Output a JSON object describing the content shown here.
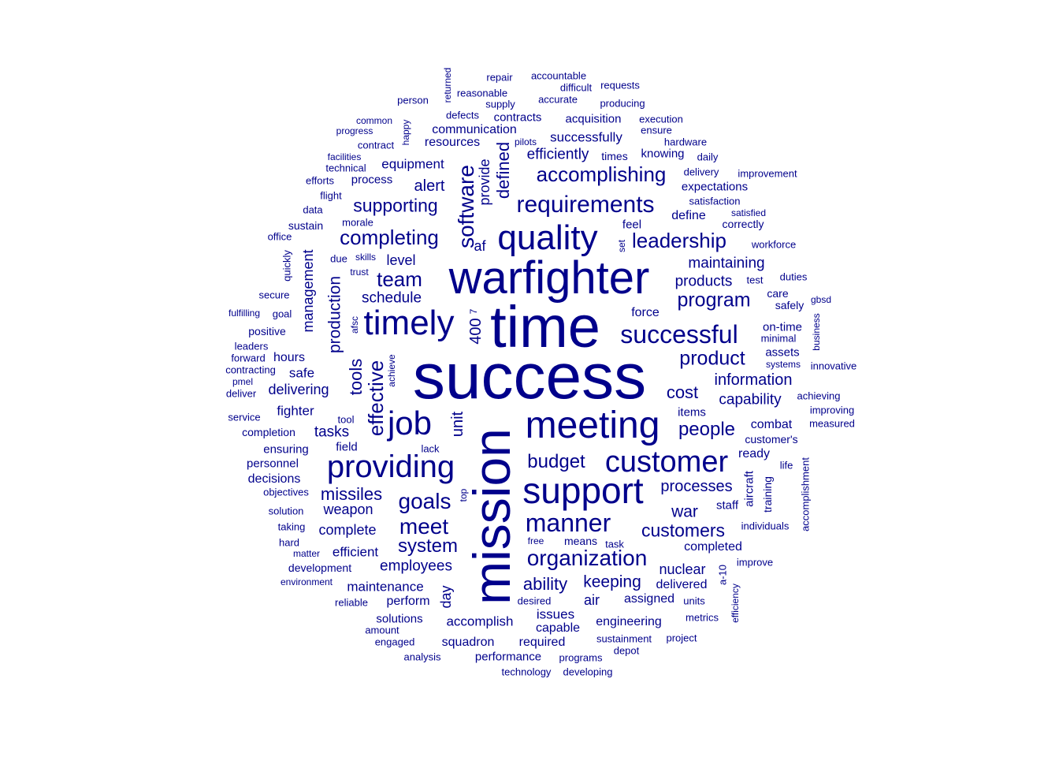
{
  "color": "#00008b",
  "words": [
    {
      "text": "success",
      "size": 82
    },
    {
      "text": "mission",
      "size": 66,
      "vertical": true
    },
    {
      "text": "time",
      "size": 74
    },
    {
      "text": "warfighter",
      "size": 58
    },
    {
      "text": "support",
      "size": 46
    },
    {
      "text": "meeting",
      "size": 48
    },
    {
      "text": "quality",
      "size": 44
    },
    {
      "text": "timely",
      "size": 44
    },
    {
      "text": "job",
      "size": 42
    },
    {
      "text": "providing",
      "size": 40
    },
    {
      "text": "customer",
      "size": 38
    },
    {
      "text": "manner",
      "size": 32
    },
    {
      "text": "requirements",
      "size": 30
    },
    {
      "text": "successful",
      "size": 32
    },
    {
      "text": "software",
      "size": 28,
      "vertical": true
    },
    {
      "text": "organization",
      "size": 28
    },
    {
      "text": "effective",
      "size": 26,
      "vertical": true
    },
    {
      "text": "goals",
      "size": 28
    },
    {
      "text": "meet",
      "size": 28
    },
    {
      "text": "completing",
      "size": 26
    },
    {
      "text": "accomplishing",
      "size": 26
    },
    {
      "text": "leadership",
      "size": 26
    },
    {
      "text": "team",
      "size": 26
    },
    {
      "text": "program",
      "size": 25
    },
    {
      "text": "product",
      "size": 25
    },
    {
      "text": "budget",
      "size": 24
    },
    {
      "text": "customers",
      "size": 23
    },
    {
      "text": "people",
      "size": 24
    },
    {
      "text": "system",
      "size": 24
    },
    {
      "text": "supporting",
      "size": 23
    },
    {
      "text": "missiles",
      "size": 22
    },
    {
      "text": "ability",
      "size": 22
    },
    {
      "text": "cost",
      "size": 22
    },
    {
      "text": "keeping",
      "size": 21
    },
    {
      "text": "processes",
      "size": 20
    },
    {
      "text": "war",
      "size": 21
    },
    {
      "text": "tools",
      "size": 22,
      "vertical": true
    },
    {
      "text": "defined",
      "size": 22,
      "vertical": true
    },
    {
      "text": "production",
      "size": 21,
      "vertical": true
    },
    {
      "text": "management",
      "size": 18,
      "vertical": true
    },
    {
      "text": "unit",
      "size": 20,
      "vertical": true
    },
    {
      "text": "provide",
      "size": 18,
      "vertical": true
    },
    {
      "text": "400",
      "size": 20,
      "vertical": true
    },
    {
      "text": "af",
      "size": 18
    },
    {
      "text": "level",
      "size": 18
    },
    {
      "text": "alert",
      "size": 20
    },
    {
      "text": "schedule",
      "size": 19
    },
    {
      "text": "information",
      "size": 20
    },
    {
      "text": "capability",
      "size": 19
    },
    {
      "text": "products",
      "size": 19
    },
    {
      "text": "maintaining",
      "size": 19
    },
    {
      "text": "efficiently",
      "size": 19
    },
    {
      "text": "successfully",
      "size": 17
    },
    {
      "text": "equipment",
      "size": 17
    },
    {
      "text": "weapon",
      "size": 18
    },
    {
      "text": "tasks",
      "size": 19
    },
    {
      "text": "employees",
      "size": 19
    },
    {
      "text": "complete",
      "size": 18
    },
    {
      "text": "efficient",
      "size": 17
    },
    {
      "text": "maintenance",
      "size": 17
    },
    {
      "text": "delivering",
      "size": 18
    },
    {
      "text": "fighter",
      "size": 17
    },
    {
      "text": "safe",
      "size": 17
    },
    {
      "text": "hours",
      "size": 16
    },
    {
      "text": "nuclear",
      "size": 18
    },
    {
      "text": "delivered",
      "size": 16
    },
    {
      "text": "completed",
      "size": 16
    },
    {
      "text": "combat",
      "size": 16
    },
    {
      "text": "ready",
      "size": 16
    },
    {
      "text": "aircraft",
      "size": 15,
      "vertical": true
    },
    {
      "text": "training",
      "size": 14,
      "vertical": true
    },
    {
      "text": "staff",
      "size": 15
    },
    {
      "text": "items",
      "size": 15
    },
    {
      "text": "force",
      "size": 16
    },
    {
      "text": "define",
      "size": 16
    },
    {
      "text": "feel",
      "size": 15
    },
    {
      "text": "expectations",
      "size": 15
    },
    {
      "text": "knowing",
      "size": 15
    },
    {
      "text": "times",
      "size": 14
    },
    {
      "text": "acquisition",
      "size": 15
    },
    {
      "text": "contracts",
      "size": 15
    },
    {
      "text": "communication",
      "size": 16
    },
    {
      "text": "resources",
      "size": 16
    },
    {
      "text": "process",
      "size": 15
    },
    {
      "text": "sustain",
      "size": 14
    },
    {
      "text": "positive",
      "size": 14
    },
    {
      "text": "ensuring",
      "size": 15
    },
    {
      "text": "personnel",
      "size": 15
    },
    {
      "text": "decisions",
      "size": 16
    },
    {
      "text": "completion",
      "size": 14
    },
    {
      "text": "field",
      "size": 15
    },
    {
      "text": "accomplish",
      "size": 17
    },
    {
      "text": "issues",
      "size": 17
    },
    {
      "text": "capable",
      "size": 16
    },
    {
      "text": "engineering",
      "size": 16
    },
    {
      "text": "air",
      "size": 18
    },
    {
      "text": "assigned",
      "size": 16
    },
    {
      "text": "perform",
      "size": 16
    },
    {
      "text": "solutions",
      "size": 15
    },
    {
      "text": "squadron",
      "size": 16
    },
    {
      "text": "required",
      "size": 16
    },
    {
      "text": "performance",
      "size": 15
    },
    {
      "text": "means",
      "size": 14
    },
    {
      "text": "day",
      "size": 18,
      "vertical": true
    },
    {
      "text": "on-time",
      "size": 15
    },
    {
      "text": "assets",
      "size": 15
    },
    {
      "text": "care",
      "size": 14
    },
    {
      "text": "safely",
      "size": 14
    },
    {
      "text": "correctly",
      "size": 14
    },
    {
      "text": "customer's",
      "size": 14
    },
    {
      "text": "tool",
      "size": 13
    },
    {
      "text": "skills",
      "size": 12
    },
    {
      "text": "due",
      "size": 13
    },
    {
      "text": "trust",
      "size": 12
    },
    {
      "text": "afsc",
      "size": 12,
      "vertical": true
    },
    {
      "text": "7",
      "size": 12,
      "vertical": true
    },
    {
      "text": "achieve",
      "size": 12,
      "vertical": true
    },
    {
      "text": "set",
      "size": 12,
      "vertical": true
    },
    {
      "text": "returned",
      "size": 12,
      "vertical": true
    },
    {
      "text": "happy",
      "size": 12,
      "vertical": true
    },
    {
      "text": "top",
      "size": 12,
      "vertical": true
    },
    {
      "text": "a-10",
      "size": 13,
      "vertical": true
    },
    {
      "text": "efficiency",
      "size": 12,
      "vertical": true
    },
    {
      "text": "accomplishment",
      "size": 13,
      "vertical": true
    },
    {
      "text": "business",
      "size": 12,
      "vertical": true
    },
    {
      "text": "quickly",
      "size": 13,
      "vertical": true
    },
    {
      "text": "lack",
      "size": 13
    },
    {
      "text": "pilots",
      "size": 12
    },
    {
      "text": "task",
      "size": 13
    },
    {
      "text": "free",
      "size": 12
    },
    {
      "text": "desired",
      "size": 13
    },
    {
      "text": "units",
      "size": 13
    },
    {
      "text": "repair",
      "size": 13
    },
    {
      "text": "accountable",
      "size": 13
    },
    {
      "text": "difficult",
      "size": 13
    },
    {
      "text": "requests",
      "size": 13
    },
    {
      "text": "reasonable",
      "size": 13
    },
    {
      "text": "person",
      "size": 13
    },
    {
      "text": "supply",
      "size": 13
    },
    {
      "text": "accurate",
      "size": 13
    },
    {
      "text": "producing",
      "size": 13
    },
    {
      "text": "defects",
      "size": 13
    },
    {
      "text": "common",
      "size": 12
    },
    {
      "text": "execution",
      "size": 13
    },
    {
      "text": "progress",
      "size": 12
    },
    {
      "text": "ensure",
      "size": 13
    },
    {
      "text": "contract",
      "size": 13
    },
    {
      "text": "hardware",
      "size": 13
    },
    {
      "text": "facilities",
      "size": 12
    },
    {
      "text": "technical",
      "size": 13
    },
    {
      "text": "daily",
      "size": 13
    },
    {
      "text": "efforts",
      "size": 13
    },
    {
      "text": "delivery",
      "size": 13
    },
    {
      "text": "improvement",
      "size": 13
    },
    {
      "text": "flight",
      "size": 13
    },
    {
      "text": "satisfaction",
      "size": 13
    },
    {
      "text": "data",
      "size": 13
    },
    {
      "text": "satisfied",
      "size": 12
    },
    {
      "text": "morale",
      "size": 13
    },
    {
      "text": "office",
      "size": 13
    },
    {
      "text": "workforce",
      "size": 13
    },
    {
      "text": "test",
      "size": 13
    },
    {
      "text": "duties",
      "size": 13
    },
    {
      "text": "secure",
      "size": 13
    },
    {
      "text": "gbsd",
      "size": 12
    },
    {
      "text": "fulfilling",
      "size": 12
    },
    {
      "text": "goal",
      "size": 13
    },
    {
      "text": "minimal",
      "size": 13
    },
    {
      "text": "leaders",
      "size": 13
    },
    {
      "text": "forward",
      "size": 13
    },
    {
      "text": "systems",
      "size": 12
    },
    {
      "text": "innovative",
      "size": 13
    },
    {
      "text": "contracting",
      "size": 13
    },
    {
      "text": "pmel",
      "size": 12
    },
    {
      "text": "deliver",
      "size": 13
    },
    {
      "text": "achieving",
      "size": 13
    },
    {
      "text": "service",
      "size": 13
    },
    {
      "text": "improving",
      "size": 13
    },
    {
      "text": "measured",
      "size": 13
    },
    {
      "text": "life",
      "size": 13
    },
    {
      "text": "objectives",
      "size": 13
    },
    {
      "text": "solution",
      "size": 13
    },
    {
      "text": "individuals",
      "size": 13
    },
    {
      "text": "taking",
      "size": 13
    },
    {
      "text": "hard",
      "size": 13
    },
    {
      "text": "matter",
      "size": 12
    },
    {
      "text": "improve",
      "size": 13
    },
    {
      "text": "development",
      "size": 14
    },
    {
      "text": "environment",
      "size": 12
    },
    {
      "text": "reliable",
      "size": 13
    },
    {
      "text": "metrics",
      "size": 13
    },
    {
      "text": "amount",
      "size": 13
    },
    {
      "text": "engaged",
      "size": 13
    },
    {
      "text": "sustainment",
      "size": 13
    },
    {
      "text": "project",
      "size": 13
    },
    {
      "text": "depot",
      "size": 13
    },
    {
      "text": "analysis",
      "size": 13
    },
    {
      "text": "programs",
      "size": 13
    },
    {
      "text": "technology",
      "size": 13
    },
    {
      "text": "developing",
      "size": 13
    }
  ]
}
